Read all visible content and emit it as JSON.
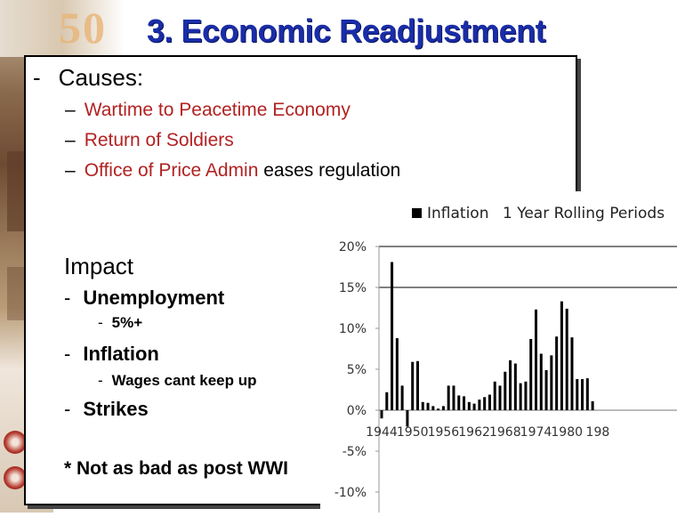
{
  "slide": {
    "title": "3. Economic Readjustment",
    "causes_heading": "Causes:",
    "causes_dash": "-",
    "cause_mark": "–",
    "causes": [
      {
        "red": "Wartime to Peacetime Economy",
        "rest": ""
      },
      {
        "red": "Return of Soldiers",
        "rest": ""
      },
      {
        "red": "Office of Price Admin",
        "rest": " eases regulation"
      }
    ],
    "impact_heading": "Impact",
    "impact_mark": "-",
    "impacts": [
      {
        "label": "Unemployment",
        "sub": "5%+"
      },
      {
        "label": "Inflation",
        "sub": "Wages cant keep up"
      },
      {
        "label": "Strikes",
        "sub": ""
      }
    ],
    "footnote": "* Not as bad as post WWI",
    "background_year": "50",
    "colors": {
      "title": "#1a2da8",
      "cause_text": "#b22222",
      "bars": "#000000"
    }
  },
  "chart_data": {
    "type": "bar",
    "title": "1 Year Rolling Periods",
    "legend": [
      {
        "name": "Inflation",
        "color": "#000000"
      }
    ],
    "legend_placement": "top",
    "x_tick_labels": [
      "1944",
      "1950",
      "1956",
      "1962",
      "1968",
      "1974",
      "1980",
      "198"
    ],
    "y_tick_labels": [
      "20%",
      "15%",
      "10%",
      "5%",
      "0%",
      "-5%",
      "-10%"
    ],
    "ylim": [
      -10,
      20
    ],
    "xlim": [
      1944,
      1985
    ],
    "x_start": 1944,
    "x_step": 0.5,
    "values": [
      -1.0,
      2.2,
      18.1,
      8.8,
      3.0,
      -2.0,
      5.9,
      6.0,
      1.0,
      0.9,
      0.5,
      0.2,
      0.5,
      3.0,
      3.0,
      1.8,
      1.7,
      1.0,
      0.8,
      1.3,
      1.6,
      1.9,
      3.5,
      3.0,
      4.7,
      6.1,
      5.7,
      3.3,
      3.5,
      8.7,
      12.3,
      6.9,
      4.9,
      6.7,
      9.0,
      13.3,
      12.4,
      8.9,
      3.8,
      3.8,
      3.9,
      1.1
    ],
    "grid": "horizontal lines at 15% and 20%"
  }
}
